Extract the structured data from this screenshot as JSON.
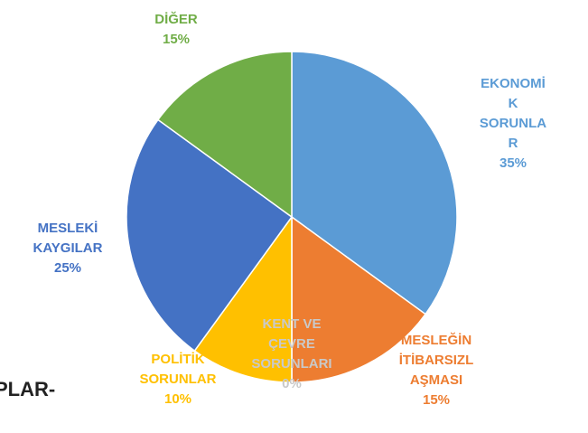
{
  "chart_data": {
    "type": "pie",
    "categories": [
      "EKONOMİK SORUNLAR",
      "MESLEĞİN İTİBARSIZLAŞMASI",
      "KENT VE ÇEVRE SORUNLARI",
      "POLİTİK SORUNLAR",
      "MESLEKİ KAYGILAR",
      "DİĞER"
    ],
    "values": [
      35,
      15,
      0,
      10,
      25,
      15
    ],
    "value_labels": [
      "35%",
      "15%",
      "0%",
      "10%",
      "25%",
      "15%"
    ],
    "colors": [
      "#5b9bd5",
      "#ed7d31",
      "#a5a5a5",
      "#ffc000",
      "#4472c4",
      "#70ad47"
    ],
    "annotation": "PLAR-"
  }
}
